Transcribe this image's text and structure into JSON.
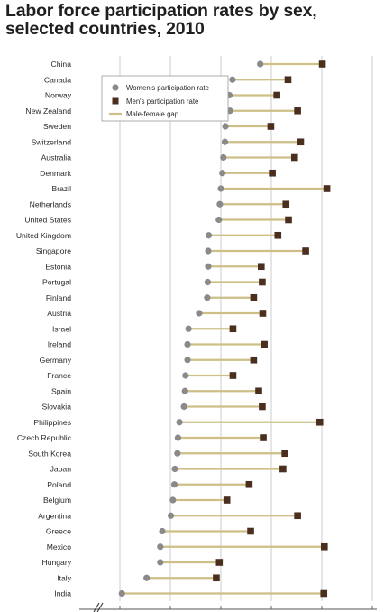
{
  "title": "Labor force participation rates by sex, selected countries, 2010",
  "chart_data": {
    "type": "dot-range",
    "title": "Labor force participation rates by sex, selected countries, 2010",
    "xlim": [
      40,
      90
    ],
    "grid": true,
    "axis_break": true,
    "legend_placement": "top-left",
    "legend": [
      {
        "name": "Women's participation rate",
        "marker": "circle",
        "color": "#8a8a8a"
      },
      {
        "name": "Men's participation rate",
        "marker": "square",
        "color": "#4a2e1e"
      },
      {
        "name": "Male-female gap",
        "marker": "line",
        "color": "#cdbf86"
      }
    ],
    "countries": [
      {
        "name": "China",
        "women": 67.8,
        "men": 80.1
      },
      {
        "name": "Canada",
        "women": 62.3,
        "men": 73.3
      },
      {
        "name": "Norway",
        "women": 61.7,
        "men": 71.1
      },
      {
        "name": "New Zealand",
        "women": 61.8,
        "men": 75.2
      },
      {
        "name": "Sweden",
        "women": 60.9,
        "men": 69.9
      },
      {
        "name": "Switzerland",
        "women": 60.8,
        "men": 75.8
      },
      {
        "name": "Australia",
        "women": 60.5,
        "men": 74.6
      },
      {
        "name": "Denmark",
        "women": 60.3,
        "men": 70.2
      },
      {
        "name": "Brazil",
        "women": 60.0,
        "men": 81.0
      },
      {
        "name": "Netherlands",
        "women": 59.8,
        "men": 72.9
      },
      {
        "name": "United States",
        "women": 59.6,
        "men": 73.4
      },
      {
        "name": "United Kingdom",
        "women": 57.6,
        "men": 71.3
      },
      {
        "name": "Singapore",
        "women": 57.5,
        "men": 76.8
      },
      {
        "name": "Estonia",
        "women": 57.5,
        "men": 68.0
      },
      {
        "name": "Portugal",
        "women": 57.4,
        "men": 68.2
      },
      {
        "name": "Finland",
        "women": 57.3,
        "men": 66.5
      },
      {
        "name": "Austria",
        "women": 55.7,
        "men": 68.3
      },
      {
        "name": "Israel",
        "women": 53.6,
        "men": 62.4
      },
      {
        "name": "Ireland",
        "women": 53.4,
        "men": 68.6
      },
      {
        "name": "Germany",
        "women": 53.4,
        "men": 66.5
      },
      {
        "name": "France",
        "women": 53.0,
        "men": 62.4
      },
      {
        "name": "Spain",
        "women": 52.9,
        "men": 67.5
      },
      {
        "name": "Slovakia",
        "women": 52.7,
        "men": 68.2
      },
      {
        "name": "Philippines",
        "women": 51.8,
        "men": 79.6
      },
      {
        "name": "Czech Republic",
        "women": 51.5,
        "men": 68.4
      },
      {
        "name": "South Korea",
        "women": 51.4,
        "men": 72.7
      },
      {
        "name": "Japan",
        "women": 50.9,
        "men": 72.3
      },
      {
        "name": "Poland",
        "women": 50.8,
        "men": 65.6
      },
      {
        "name": "Belgium",
        "women": 50.5,
        "men": 61.2
      },
      {
        "name": "Argentina",
        "women": 50.1,
        "men": 75.2
      },
      {
        "name": "Greece",
        "women": 48.4,
        "men": 65.9
      },
      {
        "name": "Mexico",
        "women": 48.0,
        "men": 80.5
      },
      {
        "name": "Hungary",
        "women": 48.0,
        "men": 59.7
      },
      {
        "name": "Italy",
        "women": 45.3,
        "men": 59.1
      },
      {
        "name": "India",
        "women": 40.4,
        "men": 80.4
      }
    ]
  },
  "colors": {
    "women": "#8a8a8a",
    "men": "#4a2e1e",
    "gap": "#cdbf86",
    "grid": "#c9c9c9",
    "background": "#ffffff"
  }
}
